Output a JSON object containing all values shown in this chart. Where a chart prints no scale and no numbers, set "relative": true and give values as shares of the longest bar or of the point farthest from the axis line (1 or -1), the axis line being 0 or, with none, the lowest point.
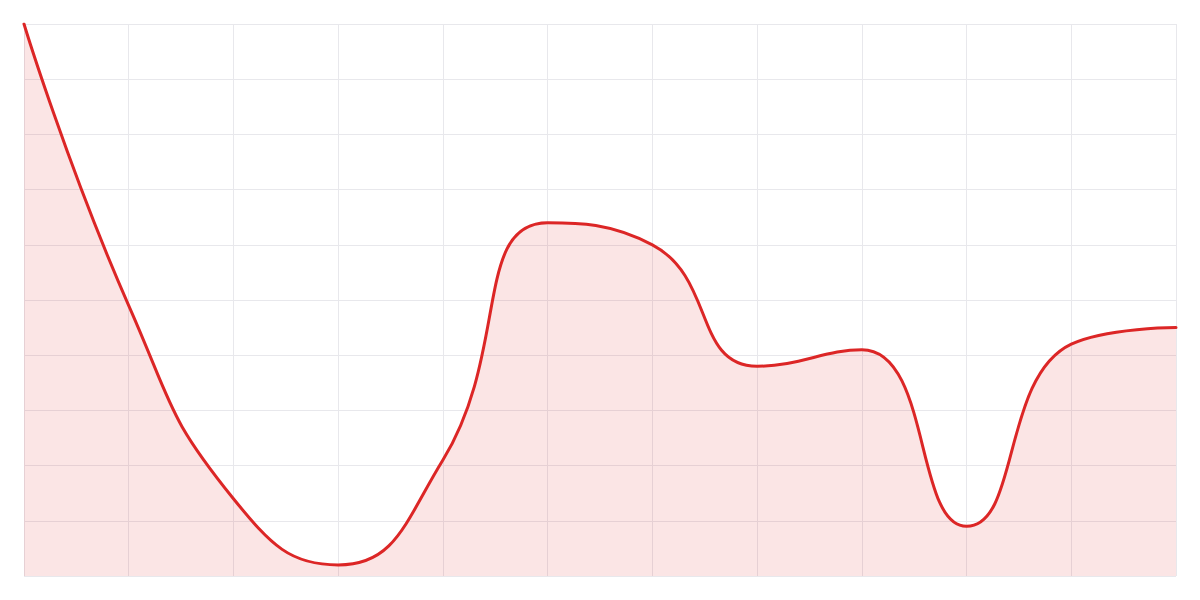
{
  "chart_data": {
    "type": "area",
    "relative": true,
    "grid": true,
    "color": "#dc2626",
    "categories": [
      null,
      null,
      null,
      null,
      null,
      null,
      null,
      null,
      null,
      null,
      null,
      null
    ],
    "values": [
      1.0,
      0.49,
      0.14,
      0.02,
      0.21,
      0.64,
      0.6,
      0.38,
      0.41,
      0.09,
      0.42,
      0.45
    ]
  }
}
